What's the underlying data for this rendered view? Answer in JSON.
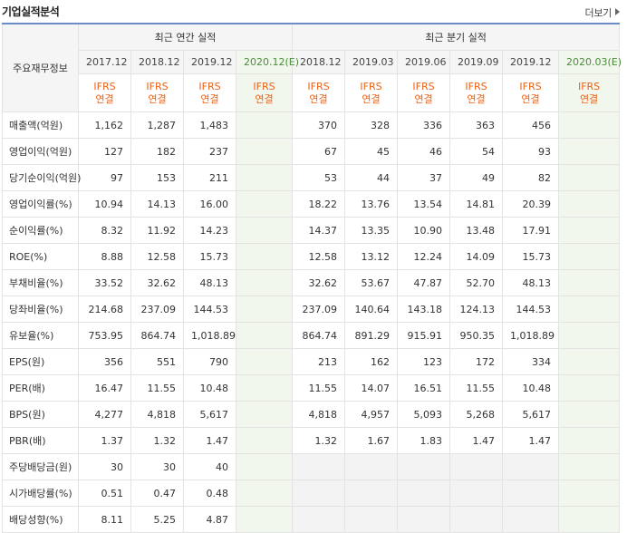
{
  "header": {
    "title": "기업실적분석",
    "more_label": "더보기"
  },
  "table": {
    "row_header": "주요재무정보",
    "group_annual": "최근 연간 실적",
    "group_quarterly": "최근 분기 실적",
    "periods": [
      "2017.12",
      "2018.12",
      "2019.12",
      "2020.12(E)",
      "2018.12",
      "2019.03",
      "2019.06",
      "2019.09",
      "2019.12",
      "2020.03(E)"
    ],
    "ifrs_top": "IFRS",
    "ifrs_bottom": "연결",
    "rows": [
      {
        "label": "매출액(억원)",
        "values": [
          "1,162",
          "1,287",
          "1,483",
          "",
          "370",
          "328",
          "336",
          "363",
          "456",
          ""
        ]
      },
      {
        "label": "영업이익(억원)",
        "values": [
          "127",
          "182",
          "237",
          "",
          "67",
          "45",
          "46",
          "54",
          "93",
          ""
        ]
      },
      {
        "label": "당기순이익(억원)",
        "values": [
          "97",
          "153",
          "211",
          "",
          "53",
          "44",
          "37",
          "49",
          "82",
          ""
        ]
      },
      {
        "label": "영업이익률(%)",
        "values": [
          "10.94",
          "14.13",
          "16.00",
          "",
          "18.22",
          "13.76",
          "13.54",
          "14.81",
          "20.39",
          ""
        ]
      },
      {
        "label": "순이익률(%)",
        "values": [
          "8.32",
          "11.92",
          "14.23",
          "",
          "14.37",
          "13.35",
          "10.90",
          "13.48",
          "17.91",
          ""
        ]
      },
      {
        "label": "ROE(%)",
        "values": [
          "8.88",
          "12.58",
          "15.73",
          "",
          "12.58",
          "13.12",
          "12.24",
          "14.09",
          "15.73",
          ""
        ]
      },
      {
        "label": "부채비율(%)",
        "values": [
          "33.52",
          "32.62",
          "48.13",
          "",
          "32.62",
          "53.67",
          "47.87",
          "52.70",
          "48.13",
          ""
        ]
      },
      {
        "label": "당좌비율(%)",
        "values": [
          "214.68",
          "237.09",
          "144.53",
          "",
          "237.09",
          "140.64",
          "143.18",
          "124.13",
          "144.53",
          ""
        ]
      },
      {
        "label": "유보율(%)",
        "values": [
          "753.95",
          "864.74",
          "1,018.89",
          "",
          "864.74",
          "891.29",
          "915.91",
          "950.35",
          "1,018.89",
          ""
        ]
      },
      {
        "label": "EPS(원)",
        "values": [
          "356",
          "551",
          "790",
          "",
          "213",
          "162",
          "123",
          "172",
          "334",
          ""
        ]
      },
      {
        "label": "PER(배)",
        "values": [
          "16.47",
          "11.55",
          "10.48",
          "",
          "11.55",
          "14.07",
          "16.51",
          "11.55",
          "10.48",
          ""
        ]
      },
      {
        "label": "BPS(원)",
        "values": [
          "4,277",
          "4,818",
          "5,617",
          "",
          "4,818",
          "4,957",
          "5,093",
          "5,268",
          "5,617",
          ""
        ]
      },
      {
        "label": "PBR(배)",
        "values": [
          "1.37",
          "1.32",
          "1.47",
          "",
          "1.32",
          "1.67",
          "1.83",
          "1.47",
          "1.47",
          ""
        ]
      },
      {
        "label": "주당배당금(원)",
        "values": [
          "30",
          "30",
          "40",
          "",
          "",
          "",
          "",
          "",
          "",
          ""
        ]
      },
      {
        "label": "시가배당률(%)",
        "values": [
          "0.51",
          "0.47",
          "0.48",
          "",
          "",
          "",
          "",
          "",
          "",
          ""
        ]
      },
      {
        "label": "배당성향(%)",
        "values": [
          "8.11",
          "5.25",
          "4.87",
          "",
          "",
          "",
          "",
          "",
          "",
          ""
        ]
      }
    ]
  },
  "colors": {
    "accent_border": "#6a8dc5",
    "ifrs_text": "#e8631a",
    "estimate_text": "#4a8c3c",
    "estimate_bg": "#f2f7ee"
  }
}
